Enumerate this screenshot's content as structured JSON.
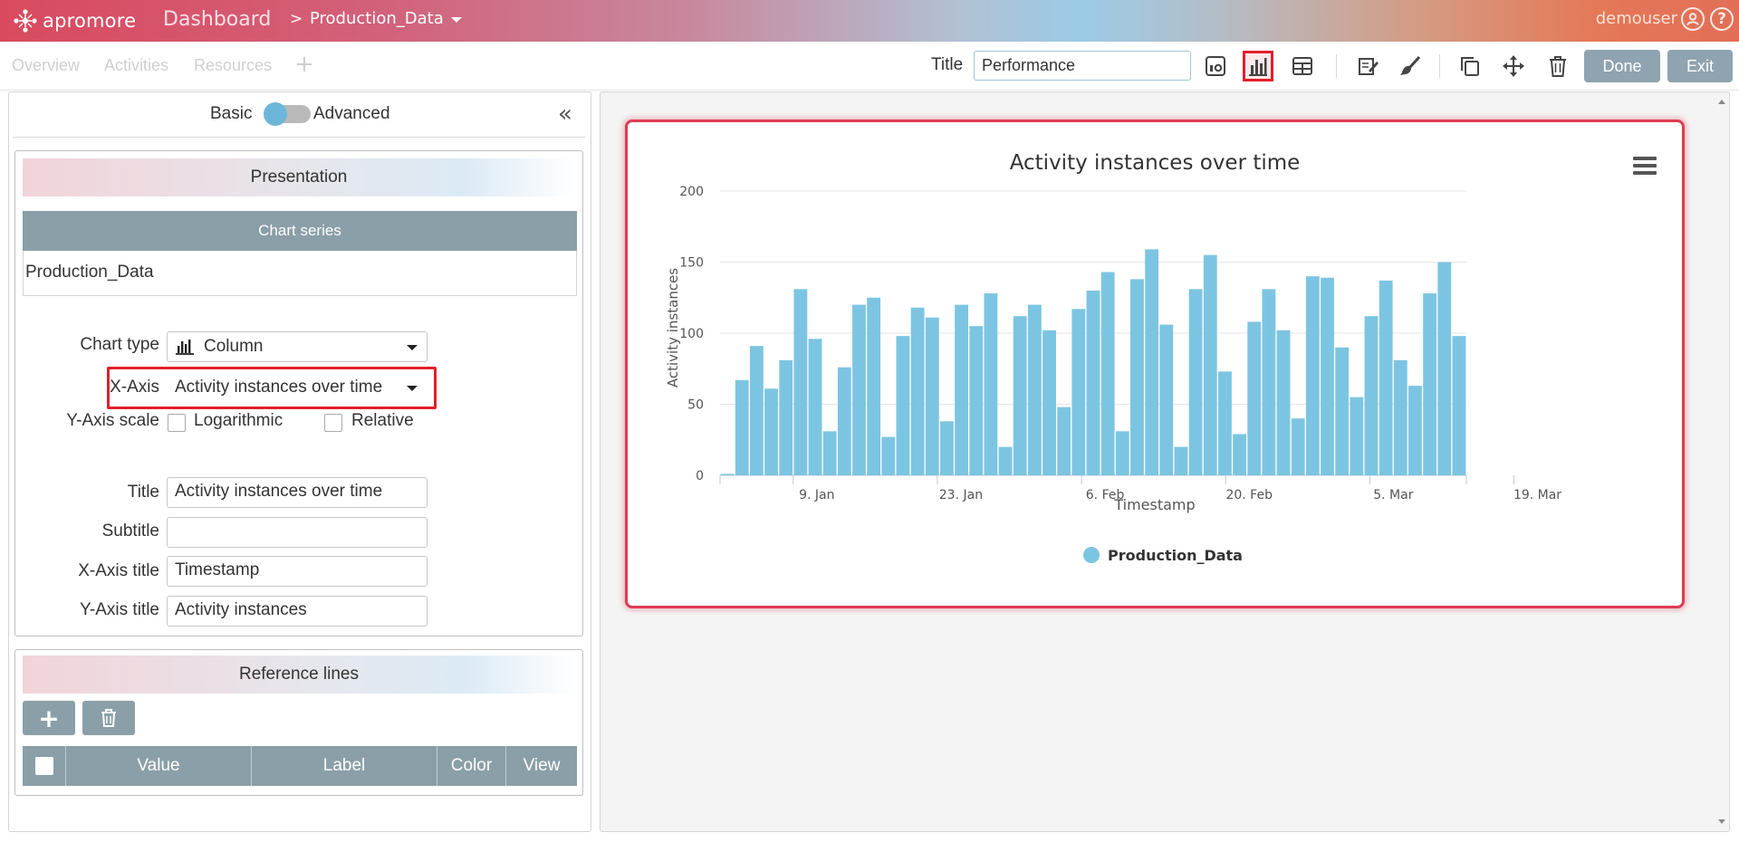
{
  "header": {
    "app_name": "apromore",
    "section": "Dashboard",
    "separator": ">",
    "dataset": "Production_Data",
    "user": "demouser",
    "help_symbol": "?",
    "icons": [
      "user-circle-icon",
      "help-circle-icon"
    ]
  },
  "tabs": [
    "Overview",
    "Activities",
    "Resources"
  ],
  "add_tab_symbol": "+",
  "toolbar": {
    "title_label": "Title",
    "title_value": "Performance",
    "icons": [
      "kpi-icon",
      "column-chart-icon",
      "table-icon",
      "edit-icon",
      "brush-icon",
      "copy-icon",
      "move-icon",
      "delete-icon"
    ],
    "active_icon": "column-chart-icon",
    "done_label": "Done",
    "exit_label": "Exit"
  },
  "left_panel": {
    "mode_basic": "Basic",
    "mode_advanced": "Advanced",
    "mode_state": "basic",
    "collapse_symbol": "«",
    "presentation": {
      "header": "Presentation",
      "series_header": "Chart series",
      "series_item": "Production_Data",
      "chart_type_label": "Chart type",
      "chart_type_value": "Column",
      "x_axis_label": "X-Axis",
      "x_axis_value": "Activity instances over time",
      "y_scale_label": "Y-Axis scale",
      "logarithmic_label": "Logarithmic",
      "logarithmic_checked": false,
      "relative_label": "Relative",
      "relative_checked": false,
      "title_label": "Title",
      "title_value": "Activity instances over time",
      "subtitle_label": "Subtitle",
      "subtitle_value": "",
      "x_title_label": "X-Axis title",
      "x_title_value": "Timestamp",
      "y_title_label": "Y-Axis title",
      "y_title_value": "Activity instances"
    },
    "reference_lines": {
      "header": "Reference lines",
      "add_symbol": "+",
      "columns": [
        "Value",
        "Label",
        "Color",
        "View"
      ]
    }
  },
  "chart_data": {
    "type": "bar",
    "title": "Activity instances over time",
    "subtitle": "",
    "xlabel": "Timestamp",
    "ylabel": "Activity instances",
    "ylim": [
      0,
      200
    ],
    "yticks": [
      0,
      50,
      100,
      150,
      200
    ],
    "xticks": [
      "9. Jan",
      "23. Jan",
      "6. Feb",
      "20. Feb",
      "5. Mar",
      "19. Mar"
    ],
    "grid": true,
    "legend": "bottom-center",
    "series": [
      {
        "name": "Production_Data",
        "color": "#7cc5e2",
        "values": [
          1,
          67,
          91,
          61,
          81,
          131,
          96,
          31,
          76,
          120,
          125,
          27,
          98,
          118,
          111,
          38,
          120,
          105,
          128,
          20,
          112,
          120,
          102,
          48,
          117,
          130,
          143,
          31,
          138,
          159,
          106,
          20,
          131,
          155,
          73,
          29,
          108,
          131,
          102,
          40,
          140,
          139,
          90,
          55,
          112,
          137,
          81,
          63,
          128,
          150,
          98
        ]
      }
    ]
  }
}
